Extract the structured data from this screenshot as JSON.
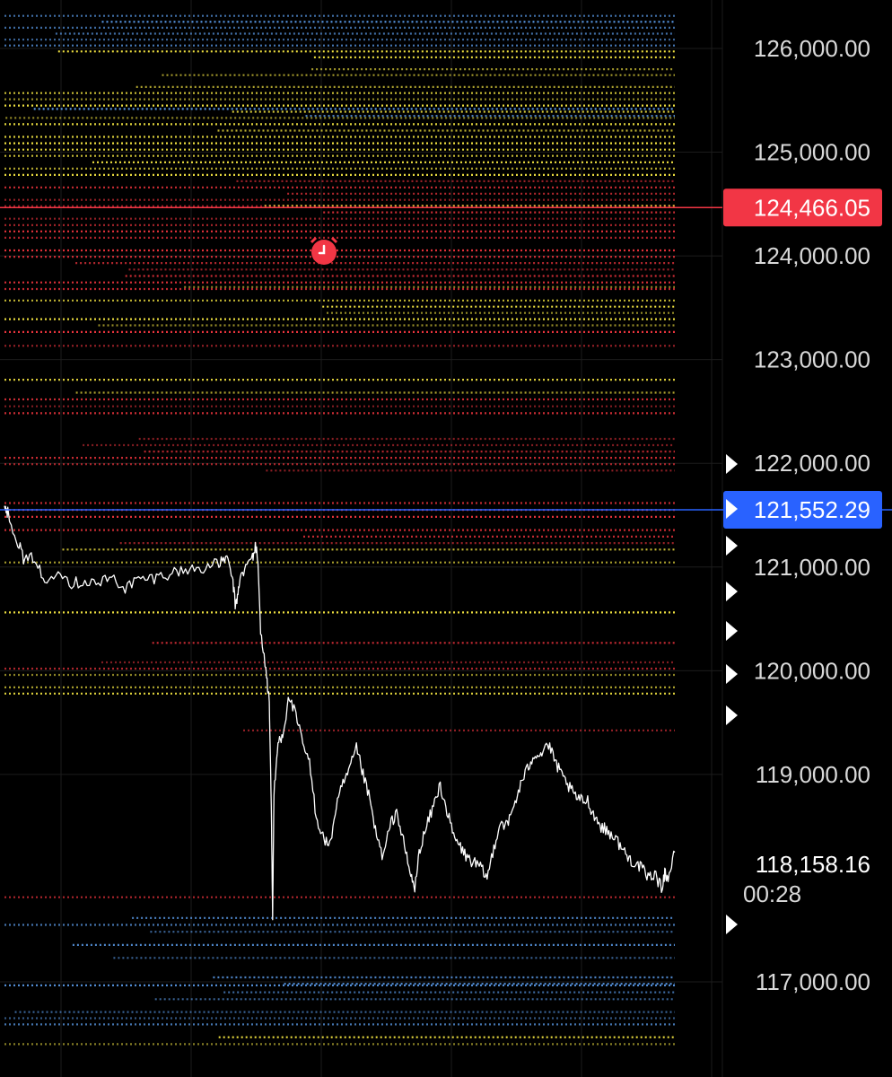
{
  "colors": {
    "background": "#000000",
    "grid": "#1c1c1c",
    "price_line": "#ffffff",
    "alert": "#f23645",
    "current": "#2962ff",
    "level_yellow": "#f5e642",
    "level_red": "#e8333c",
    "level_blue": "#5b9bea",
    "axis_text": "#d9d9d9"
  },
  "icons": {
    "alert": "alarm-clock-icon",
    "marker": "play-triangle-icon"
  },
  "axis": {
    "tick_labels": [
      "126,000.00",
      "125,000.00",
      "124,000.00",
      "123,000.00",
      "122,000.00",
      "121,000.00",
      "120,000.00",
      "119,000.00",
      "117,000.00"
    ],
    "alert_price_label": "124,466.05",
    "current_price_label": "121,552.29",
    "last_price_label": "118,158.16",
    "countdown_label": "00:28"
  },
  "chart_data": {
    "type": "line",
    "title": "",
    "xlabel": "",
    "ylabel": "",
    "ylim": [
      116100,
      126450
    ],
    "y_ticks": [
      126000,
      125000,
      124000,
      123000,
      122000,
      121000,
      120000,
      119000,
      117000
    ],
    "grid": true,
    "legend": "none",
    "alert_price": 124466.05,
    "current_price": 121552.29,
    "last_price": 118158.16,
    "price_path": [
      [
        0,
        121600
      ],
      [
        0.005,
        121520
      ],
      [
        0.02,
        121250
      ],
      [
        0.03,
        121050
      ],
      [
        0.045,
        121100
      ],
      [
        0.06,
        120830
      ],
      [
        0.08,
        121000
      ],
      [
        0.1,
        120840
      ],
      [
        0.12,
        120870
      ],
      [
        0.14,
        120840
      ],
      [
        0.16,
        120900
      ],
      [
        0.18,
        120800
      ],
      [
        0.2,
        120880
      ],
      [
        0.22,
        120890
      ],
      [
        0.24,
        120930
      ],
      [
        0.26,
        120960
      ],
      [
        0.28,
        120980
      ],
      [
        0.3,
        121000
      ],
      [
        0.32,
        121030
      ],
      [
        0.33,
        121100
      ],
      [
        0.34,
        120900
      ],
      [
        0.345,
        120600
      ],
      [
        0.35,
        120850
      ],
      [
        0.36,
        121000
      ],
      [
        0.37,
        121100
      ],
      [
        0.375,
        121200
      ],
      [
        0.378,
        121050
      ],
      [
        0.382,
        120400
      ],
      [
        0.39,
        120000
      ],
      [
        0.395,
        119700
      ],
      [
        0.398,
        118700
      ],
      [
        0.4,
        117600
      ],
      [
        0.402,
        118800
      ],
      [
        0.408,
        119300
      ],
      [
        0.415,
        119400
      ],
      [
        0.425,
        119750
      ],
      [
        0.435,
        119550
      ],
      [
        0.445,
        119300
      ],
      [
        0.455,
        119100
      ],
      [
        0.465,
        118600
      ],
      [
        0.475,
        118400
      ],
      [
        0.485,
        118300
      ],
      [
        0.495,
        118700
      ],
      [
        0.505,
        118900
      ],
      [
        0.515,
        119050
      ],
      [
        0.525,
        119250
      ],
      [
        0.535,
        119000
      ],
      [
        0.545,
        118750
      ],
      [
        0.555,
        118400
      ],
      [
        0.565,
        118200
      ],
      [
        0.575,
        118500
      ],
      [
        0.585,
        118650
      ],
      [
        0.595,
        118350
      ],
      [
        0.605,
        118050
      ],
      [
        0.612,
        117900
      ],
      [
        0.62,
        118300
      ],
      [
        0.63,
        118500
      ],
      [
        0.64,
        118700
      ],
      [
        0.65,
        118900
      ],
      [
        0.66,
        118650
      ],
      [
        0.67,
        118400
      ],
      [
        0.68,
        118300
      ],
      [
        0.69,
        118200
      ],
      [
        0.7,
        118150
      ],
      [
        0.71,
        118100
      ],
      [
        0.72,
        118000
      ],
      [
        0.73,
        118300
      ],
      [
        0.74,
        118550
      ],
      [
        0.75,
        118500
      ],
      [
        0.76,
        118700
      ],
      [
        0.77,
        118900
      ],
      [
        0.78,
        119050
      ],
      [
        0.79,
        119200
      ],
      [
        0.8,
        119200
      ],
      [
        0.81,
        119300
      ],
      [
        0.82,
        119150
      ],
      [
        0.83,
        119000
      ],
      [
        0.84,
        118900
      ],
      [
        0.85,
        118800
      ],
      [
        0.86,
        118750
      ],
      [
        0.87,
        118750
      ],
      [
        0.88,
        118600
      ],
      [
        0.89,
        118500
      ],
      [
        0.9,
        118450
      ],
      [
        0.91,
        118400
      ],
      [
        0.92,
        118300
      ],
      [
        0.93,
        118200
      ],
      [
        0.94,
        118150
      ],
      [
        0.95,
        118100
      ],
      [
        0.96,
        118000
      ],
      [
        0.97,
        118050
      ],
      [
        0.98,
        117900
      ],
      [
        0.985,
        118050
      ],
      [
        0.99,
        118000
      ],
      [
        1.0,
        118250
      ]
    ],
    "bands": [
      {
        "y": [
          126000,
          126400
        ],
        "color": "blue",
        "density": 0.9
      },
      {
        "y": [
          125600,
          126000
        ],
        "color": "yellow",
        "density": 0.7
      },
      {
        "y": [
          125300,
          125600
        ],
        "color": "yellow",
        "density": 0.9
      },
      {
        "y": [
          125250,
          125450
        ],
        "color": "blue",
        "density": 0.5
      },
      {
        "y": [
          124750,
          125300
        ],
        "color": "yellow",
        "density": 1.0
      },
      {
        "y": [
          124450,
          124750
        ],
        "color": "red",
        "density": 1.0
      },
      {
        "y": [
          124450,
          124520
        ],
        "color": "yellow",
        "density": 1.0
      },
      {
        "y": [
          123900,
          124450
        ],
        "color": "red",
        "density": 0.95
      },
      {
        "y": [
          123650,
          123900
        ],
        "color": "red",
        "density": 0.9
      },
      {
        "y": [
          123600,
          123800
        ],
        "color": "yellow",
        "density": 0.6
      },
      {
        "y": [
          123300,
          123600
        ],
        "color": "yellow",
        "density": 0.85
      },
      {
        "y": [
          123100,
          123300
        ],
        "color": "red",
        "density": 0.6
      },
      {
        "y": [
          122650,
          122900
        ],
        "color": "yellow",
        "density": 0.6
      },
      {
        "y": [
          122450,
          122650
        ],
        "color": "red",
        "density": 0.7
      },
      {
        "y": [
          121900,
          122450
        ],
        "color": "red",
        "density": 0.5
      },
      {
        "y": [
          121450,
          121650
        ],
        "color": "red",
        "density": 0.9
      },
      {
        "y": [
          121200,
          121450
        ],
        "color": "red",
        "density": 0.45
      },
      {
        "y": [
          120950,
          121200
        ],
        "color": "yellow",
        "density": 0.4
      },
      {
        "y": [
          120450,
          120600
        ],
        "color": "yellow",
        "density": 0.25
      },
      {
        "y": [
          120050,
          120300
        ],
        "color": "red",
        "density": 0.3
      },
      {
        "y": [
          119750,
          120050
        ],
        "color": "red",
        "density": 0.35
      },
      {
        "y": [
          119750,
          120050
        ],
        "color": "yellow",
        "density": 0.3
      },
      {
        "y": [
          119350,
          119450
        ],
        "color": "red",
        "density": 0.2
      },
      {
        "y": [
          118700,
          118800
        ],
        "color": "red",
        "density": 0.2
      },
      {
        "y": [
          117650,
          117850
        ],
        "color": "red",
        "density": 0.25
      },
      {
        "y": [
          117450,
          117650
        ],
        "color": "blue",
        "density": 1.0
      },
      {
        "y": [
          117200,
          117450
        ],
        "color": "blue",
        "density": 0.6
      },
      {
        "y": [
          116950,
          117200
        ],
        "color": "blue",
        "density": 0.5
      },
      {
        "y": [
          116800,
          117000
        ],
        "color": "blue",
        "density": 0.8
      },
      {
        "y": [
          116500,
          116800
        ],
        "color": "blue",
        "density": 0.5
      },
      {
        "y": [
          116300,
          116500
        ],
        "color": "yellow",
        "density": 0.5
      }
    ]
  }
}
